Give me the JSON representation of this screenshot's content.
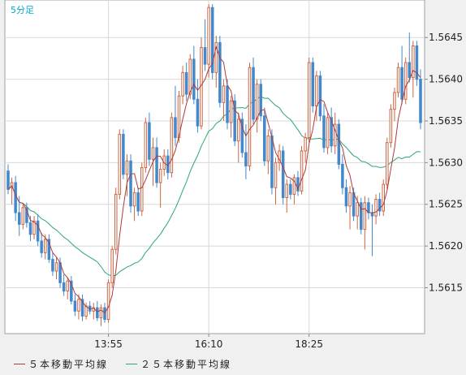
{
  "chart": {
    "timeframe": "5分足"
  },
  "legend": {
    "ma5_label": "５本移動平均線",
    "ma25_label": "２５本移動平均線"
  },
  "colors": {
    "up_candle": "#cc6644",
    "down_candle": "#4488cc",
    "ma5": "#b03a3a",
    "ma25": "#2aa77a",
    "grid": "#d8d8d8",
    "plot_bg": "#ffffff",
    "axis_text": "#222222"
  },
  "chart_data": {
    "type": "candlestick",
    "xlabel": "",
    "ylabel": "",
    "ylim": [
      1.56095,
      1.56495
    ],
    "y_ticks": [
      "1.5645",
      "1.5640",
      "1.5635",
      "1.5630",
      "1.5625",
      "1.5620",
      "1.5615"
    ],
    "x_ticks": [
      {
        "label": "13:55",
        "index": 27
      },
      {
        "label": "16:10",
        "index": 54
      },
      {
        "label": "18:25",
        "index": 81
      }
    ],
    "series": [
      {
        "name": "５本移動平均線",
        "kind": "ma",
        "period": 5
      },
      {
        "name": "２５本移動平均線",
        "kind": "ma",
        "period": 25
      }
    ],
    "candles": [
      [
        1.5629,
        1.56298,
        1.56262,
        1.56268
      ],
      [
        1.5627,
        1.56282,
        1.5625,
        1.56276
      ],
      [
        1.56276,
        1.56284,
        1.5623,
        1.5624
      ],
      [
        1.5624,
        1.5626,
        1.56212,
        1.56226
      ],
      [
        1.56226,
        1.5625,
        1.5622,
        1.56246
      ],
      [
        1.56246,
        1.56252,
        1.56222,
        1.56228
      ],
      [
        1.56228,
        1.56236,
        1.56206,
        1.56214
      ],
      [
        1.56214,
        1.56236,
        1.56208,
        1.5623
      ],
      [
        1.5623,
        1.56238,
        1.562,
        1.56206
      ],
      [
        1.56206,
        1.56216,
        1.56186,
        1.56192
      ],
      [
        1.56192,
        1.56214,
        1.56184,
        1.56208
      ],
      [
        1.56208,
        1.56214,
        1.5618,
        1.56184
      ],
      [
        1.56184,
        1.56192,
        1.56164,
        1.5617
      ],
      [
        1.5617,
        1.56186,
        1.5616,
        1.5618
      ],
      [
        1.5618,
        1.56186,
        1.5615,
        1.56156
      ],
      [
        1.56156,
        1.56166,
        1.5614,
        1.56146
      ],
      [
        1.56146,
        1.56162,
        1.56136,
        1.56158
      ],
      [
        1.56158,
        1.56164,
        1.5613,
        1.56134
      ],
      [
        1.56134,
        1.56142,
        1.56116,
        1.56122
      ],
      [
        1.56122,
        1.56142,
        1.56112,
        1.56136
      ],
      [
        1.56136,
        1.56142,
        1.5611,
        1.56116
      ],
      [
        1.56116,
        1.56132,
        1.56112,
        1.56128
      ],
      [
        1.56128,
        1.56134,
        1.56118,
        1.56122
      ],
      [
        1.56122,
        1.56132,
        1.56112,
        1.56126
      ],
      [
        1.56126,
        1.56134,
        1.5611,
        1.56114
      ],
      [
        1.56114,
        1.5613,
        1.56104,
        1.56126
      ],
      [
        1.56126,
        1.56132,
        1.56108,
        1.56112
      ],
      [
        1.56112,
        1.5616,
        1.56108,
        1.56156
      ],
      [
        1.56156,
        1.562,
        1.5615,
        1.56196
      ],
      [
        1.56196,
        1.5627,
        1.5619,
        1.56262
      ],
      [
        1.56262,
        1.5634,
        1.56256,
        1.56334
      ],
      [
        1.56334,
        1.5634,
        1.5628,
        1.56286
      ],
      [
        1.56286,
        1.5631,
        1.5626,
        1.56302
      ],
      [
        1.56302,
        1.5631,
        1.5624,
        1.56248
      ],
      [
        1.56248,
        1.5627,
        1.5623,
        1.56264
      ],
      [
        1.56264,
        1.5627,
        1.56236,
        1.56242
      ],
      [
        1.56242,
        1.563,
        1.56236,
        1.56294
      ],
      [
        1.56294,
        1.56354,
        1.56288,
        1.56348
      ],
      [
        1.56348,
        1.5636,
        1.56296,
        1.56304
      ],
      [
        1.56304,
        1.5633,
        1.56272,
        1.56318
      ],
      [
        1.56318,
        1.5633,
        1.5627,
        1.56276
      ],
      [
        1.56276,
        1.563,
        1.56246,
        1.56292
      ],
      [
        1.56292,
        1.56316,
        1.56284,
        1.56308
      ],
      [
        1.56308,
        1.56316,
        1.5628,
        1.56288
      ],
      [
        1.56288,
        1.5636,
        1.56282,
        1.56354
      ],
      [
        1.56354,
        1.56392,
        1.5632,
        1.5633
      ],
      [
        1.5633,
        1.56386,
        1.56324,
        1.5638
      ],
      [
        1.5638,
        1.56416,
        1.5637,
        1.56408
      ],
      [
        1.56408,
        1.5642,
        1.56374,
        1.56382
      ],
      [
        1.56382,
        1.5643,
        1.56376,
        1.56424
      ],
      [
        1.56424,
        1.5644,
        1.5637,
        1.56376
      ],
      [
        1.56376,
        1.564,
        1.56336,
        1.56344
      ],
      [
        1.56344,
        1.5645,
        1.5634,
        1.56438
      ],
      [
        1.56438,
        1.56472,
        1.5641,
        1.56418
      ],
      [
        1.56418,
        1.5649,
        1.56402,
        1.56486
      ],
      [
        1.56486,
        1.5649,
        1.564,
        1.56408
      ],
      [
        1.56408,
        1.56452,
        1.5639,
        1.56444
      ],
      [
        1.56444,
        1.56452,
        1.56366,
        1.56372
      ],
      [
        1.56372,
        1.564,
        1.5635,
        1.56392
      ],
      [
        1.56392,
        1.564,
        1.5634,
        1.56348
      ],
      [
        1.56348,
        1.5638,
        1.5633,
        1.56374
      ],
      [
        1.56374,
        1.56382,
        1.5632,
        1.56326
      ],
      [
        1.56326,
        1.5636,
        1.563,
        1.56352
      ],
      [
        1.56352,
        1.5636,
        1.56306,
        1.56312
      ],
      [
        1.56312,
        1.56346,
        1.5628,
        1.56296
      ],
      [
        1.56296,
        1.5642,
        1.5629,
        1.56414
      ],
      [
        1.56414,
        1.56426,
        1.56346,
        1.56352
      ],
      [
        1.56352,
        1.564,
        1.56336,
        1.56394
      ],
      [
        1.56394,
        1.564,
        1.5635,
        1.56356
      ],
      [
        1.56356,
        1.56366,
        1.56296,
        1.56302
      ],
      [
        1.56302,
        1.5634,
        1.56286,
        1.56332
      ],
      [
        1.56332,
        1.5634,
        1.56262,
        1.5627
      ],
      [
        1.5627,
        1.56306,
        1.5625,
        1.563
      ],
      [
        1.563,
        1.56322,
        1.5629,
        1.56314
      ],
      [
        1.56314,
        1.5632,
        1.5625,
        1.56258
      ],
      [
        1.56258,
        1.5628,
        1.5624,
        1.56274
      ],
      [
        1.56274,
        1.5628,
        1.56256,
        1.56262
      ],
      [
        1.56262,
        1.56286,
        1.5625,
        1.56282
      ],
      [
        1.56282,
        1.5629,
        1.5626,
        1.56266
      ],
      [
        1.56266,
        1.5632,
        1.56262,
        1.56314
      ],
      [
        1.56314,
        1.56336,
        1.563,
        1.5633
      ],
      [
        1.5633,
        1.56426,
        1.56324,
        1.5642
      ],
      [
        1.5642,
        1.56426,
        1.5636,
        1.56368
      ],
      [
        1.56368,
        1.5641,
        1.5635,
        1.56404
      ],
      [
        1.56404,
        1.5641,
        1.5635,
        1.56356
      ],
      [
        1.56356,
        1.5637,
        1.56312,
        1.56318
      ],
      [
        1.56318,
        1.5636,
        1.5631,
        1.56354
      ],
      [
        1.56354,
        1.56366,
        1.56312,
        1.5632
      ],
      [
        1.5632,
        1.5636,
        1.5631,
        1.56346
      ],
      [
        1.56346,
        1.56352,
        1.56292,
        1.56298
      ],
      [
        1.56298,
        1.5631,
        1.56262,
        1.5627
      ],
      [
        1.5627,
        1.5628,
        1.5624,
        1.56248
      ],
      [
        1.56248,
        1.56272,
        1.5622,
        1.56264
      ],
      [
        1.56264,
        1.5627,
        1.5623,
        1.56236
      ],
      [
        1.56236,
        1.5626,
        1.5622,
        1.56252
      ],
      [
        1.56252,
        1.56258,
        1.56214,
        1.5622
      ],
      [
        1.5622,
        1.5626,
        1.56196,
        1.56252
      ],
      [
        1.56252,
        1.56258,
        1.56232,
        1.5624
      ],
      [
        1.5624,
        1.5625,
        1.56188,
        1.56236
      ],
      [
        1.56236,
        1.56262,
        1.56226,
        1.56256
      ],
      [
        1.56256,
        1.56264,
        1.56236,
        1.56242
      ],
      [
        1.56242,
        1.5628,
        1.56236,
        1.56274
      ],
      [
        1.56274,
        1.5633,
        1.56268,
        1.56324
      ],
      [
        1.56324,
        1.5637,
        1.56318,
        1.56364
      ],
      [
        1.56364,
        1.5639,
        1.5635,
        1.56384
      ],
      [
        1.56384,
        1.5642,
        1.56378,
        1.56414
      ],
      [
        1.56414,
        1.5644,
        1.5637,
        1.56376
      ],
      [
        1.56376,
        1.56426,
        1.5637,
        1.5642
      ],
      [
        1.5642,
        1.56456,
        1.56396,
        1.56402
      ],
      [
        1.56402,
        1.56446,
        1.56378,
        1.5644
      ],
      [
        1.5644,
        1.56446,
        1.56392,
        1.564
      ],
      [
        1.564,
        1.56412,
        1.5634,
        1.56348
      ]
    ]
  }
}
